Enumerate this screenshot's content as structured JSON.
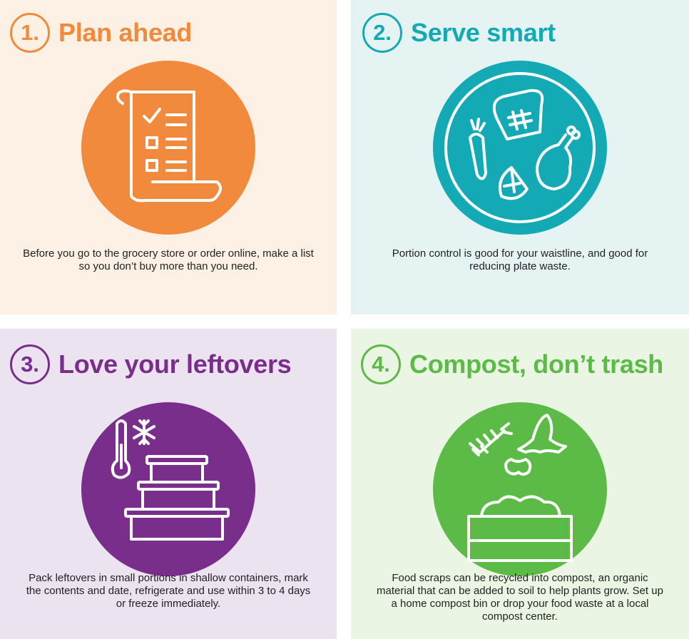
{
  "colors": {
    "orange": "#f28a3d",
    "teal": "#13aab6",
    "purple": "#7a2e8c",
    "green": "#5cba47"
  },
  "steps": [
    {
      "number": "1.",
      "title": "Plan ahead",
      "icon": "checklist-scroll-icon",
      "text": "Before you go to the grocery store or order online, make a list so you don’t buy more than you need."
    },
    {
      "number": "2.",
      "title": "Serve smart",
      "icon": "plate-of-food-icon",
      "text": "Portion control is good for your waistline, and good for reducing plate waste."
    },
    {
      "number": "3.",
      "title": "Love your leftovers",
      "icon": "stacked-containers-icon",
      "text": "Pack leftovers in small portions in shallow containers, mark the contents and date, refrigerate and use within 3 to 4 days or freeze immediately."
    },
    {
      "number": "4.",
      "title": "Compost, don’t trash",
      "icon": "compost-bin-icon",
      "text": "Food scraps can be recycled into compost, an organic material that can be added to soil to help plants grow. Set up a home compost bin or drop your food waste at a local compost center."
    }
  ]
}
